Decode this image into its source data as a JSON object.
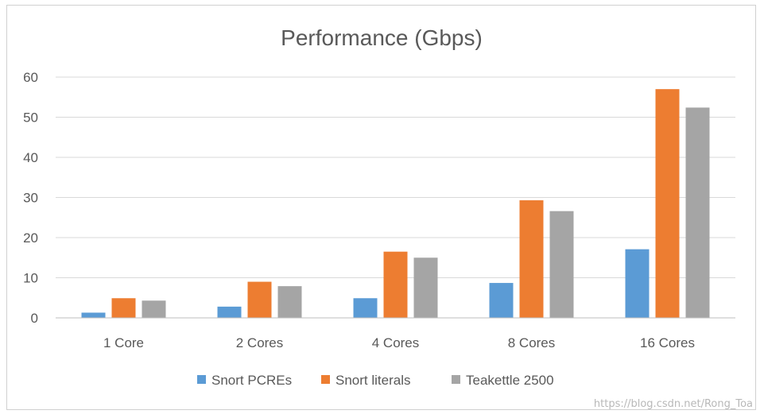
{
  "chart_data": {
    "type": "bar",
    "title": "Performance (Gbps)",
    "categories": [
      "1 Core",
      "2 Cores",
      "4 Cores",
      "8 Cores",
      "16 Cores"
    ],
    "series": [
      {
        "name": "Snort PCREs",
        "color": "#5B9BD5",
        "values": [
          1.3,
          2.8,
          4.9,
          8.7,
          17.1
        ]
      },
      {
        "name": "Snort literals",
        "color": "#ED7D31",
        "values": [
          4.9,
          9.0,
          16.5,
          29.3,
          57.0
        ]
      },
      {
        "name": "Teakettle 2500",
        "color": "#A5A5A5",
        "values": [
          4.3,
          7.9,
          15.0,
          26.6,
          52.4
        ]
      }
    ],
    "yticks": [
      "0",
      "10",
      "20",
      "30",
      "40",
      "50",
      "60"
    ],
    "ylim": [
      0,
      60
    ],
    "xlabel": "",
    "ylabel": "",
    "grid": true,
    "legend_position": "bottom"
  },
  "watermark": "https://blog.csdn.net/Rong_Toa"
}
